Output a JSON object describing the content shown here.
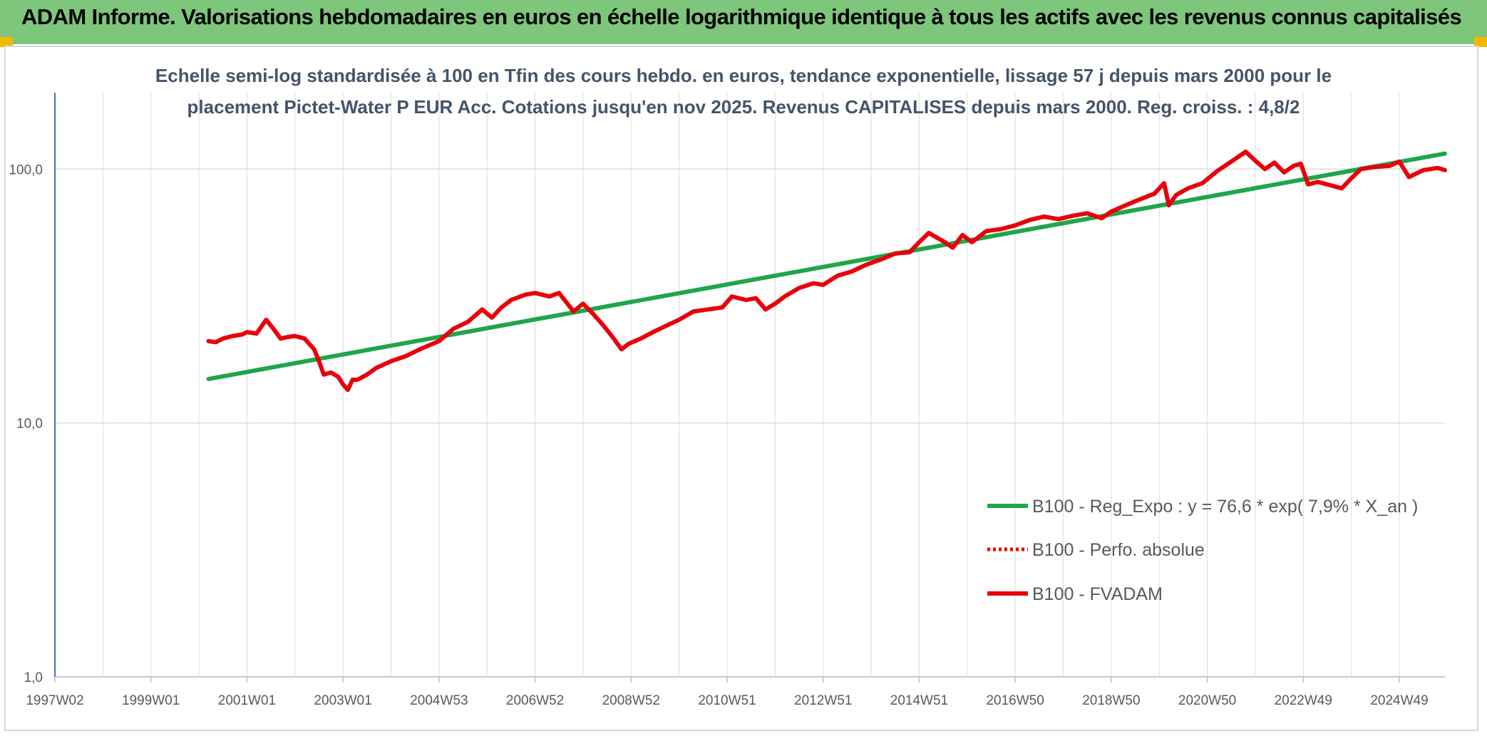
{
  "header": {
    "title": "ADAM Informe. Valorisations hebdomadaires en euros en échelle logarithmique identique à tous les actifs avec les revenus connus capitalisés"
  },
  "colors": {
    "banner": "#7dc67b",
    "regression": "#1fa64a",
    "fvadam": "#e8000b",
    "perfo": "#e8000b",
    "grid": "#dcdcdc",
    "axis": "#4472c4"
  },
  "chart_data": {
    "type": "line",
    "subtitle_lines": [
      "Echelle semi-log standardisée à 100 en Tfin des cours hebdo. en euros, tendance exponentielle, lissage 57 j depuis mars 2000 pour le",
      "placement Pictet-Water P EUR Acc. Cotations jusqu'en nov 2025. Revenus CAPITALISES depuis mars 2000. Reg. croiss. : 4,8/2"
    ],
    "y_scale": "log",
    "ylim": [
      1,
      200
    ],
    "y_ticks": [
      {
        "value": 1,
        "label": "1,0"
      },
      {
        "value": 10,
        "label": "10,0"
      },
      {
        "value": 100,
        "label": "100,0"
      }
    ],
    "xlim": [
      1997.0,
      2025.95
    ],
    "x_ticks": [
      {
        "value": 1997.0,
        "label": "1997W02"
      },
      {
        "value": 1999.0,
        "label": "1999W01"
      },
      {
        "value": 2001.0,
        "label": "2001W01"
      },
      {
        "value": 2003.0,
        "label": "2003W01"
      },
      {
        "value": 2005.0,
        "label": "2004W53"
      },
      {
        "value": 2007.0,
        "label": "2006W52"
      },
      {
        "value": 2009.0,
        "label": "2008W52"
      },
      {
        "value": 2011.0,
        "label": "2010W51"
      },
      {
        "value": 2013.0,
        "label": "2012W51"
      },
      {
        "value": 2015.0,
        "label": "2014W51"
      },
      {
        "value": 2017.0,
        "label": "2016W50"
      },
      {
        "value": 2019.0,
        "label": "2018W50"
      },
      {
        "value": 2021.0,
        "label": "2020W50"
      },
      {
        "value": 2023.0,
        "label": "2022W49"
      },
      {
        "value": 2025.0,
        "label": "2024W49"
      }
    ],
    "grid": true,
    "legend_position": "bottom-right",
    "series": [
      {
        "name": "B100 - Reg_Expo : y = 76,6 * exp( 7,9% *  X_an )",
        "style": "solid",
        "x": [
          2000.2,
          2025.95
        ],
        "y": [
          14.9,
          115
        ]
      },
      {
        "name": "B100 - Perfo. absolue",
        "style": "dotted",
        "x": [],
        "y": []
      },
      {
        "name": "B100 - FVADAM",
        "style": "solid",
        "x": [
          2000.2,
          2000.35,
          2000.5,
          2000.7,
          2000.9,
          2001.0,
          2001.2,
          2001.4,
          2001.55,
          2001.7,
          2001.85,
          2002.0,
          2002.2,
          2002.4,
          2002.5,
          2002.6,
          2002.75,
          2002.9,
          2003.0,
          2003.1,
          2003.2,
          2003.3,
          2003.5,
          2003.7,
          2004.0,
          2004.3,
          2004.6,
          2005.0,
          2005.3,
          2005.6,
          2005.9,
          2006.1,
          2006.3,
          2006.5,
          2006.8,
          2007.0,
          2007.3,
          2007.5,
          2007.8,
          2008.0,
          2008.2,
          2008.4,
          2008.6,
          2008.8,
          2008.95,
          2009.2,
          2009.5,
          2009.8,
          2010.0,
          2010.3,
          2010.6,
          2010.9,
          2011.1,
          2011.4,
          2011.6,
          2011.8,
          2012.0,
          2012.2,
          2012.5,
          2012.8,
          2013.0,
          2013.3,
          2013.6,
          2013.9,
          2014.2,
          2014.5,
          2014.8,
          2015.0,
          2015.2,
          2015.5,
          2015.7,
          2015.9,
          2016.1,
          2016.4,
          2016.7,
          2017.0,
          2017.3,
          2017.6,
          2017.9,
          2018.2,
          2018.5,
          2018.8,
          2019.0,
          2019.3,
          2019.6,
          2019.9,
          2020.1,
          2020.2,
          2020.35,
          2020.6,
          2020.9,
          2021.2,
          2021.5,
          2021.8,
          2022.0,
          2022.2,
          2022.4,
          2022.6,
          2022.8,
          2022.95,
          2023.1,
          2023.3,
          2023.5,
          2023.8,
          2024.0,
          2024.2,
          2024.5,
          2024.8,
          2025.0,
          2025.2,
          2025.5,
          2025.8,
          2025.95
        ],
        "y": [
          21.0,
          20.8,
          21.5,
          22.0,
          22.3,
          22.8,
          22.5,
          25.5,
          23.5,
          21.5,
          21.8,
          22.0,
          21.5,
          19.5,
          17.5,
          15.5,
          15.8,
          15.2,
          14.2,
          13.5,
          14.8,
          14.8,
          15.5,
          16.5,
          17.5,
          18.3,
          19.5,
          21.0,
          23.5,
          25.0,
          28.0,
          26.0,
          28.5,
          30.5,
          32.0,
          32.5,
          31.5,
          32.5,
          27.5,
          29.5,
          27.0,
          24.5,
          22.0,
          19.5,
          20.5,
          21.5,
          23.0,
          24.5,
          25.5,
          27.5,
          28.0,
          28.5,
          31.5,
          30.5,
          31.0,
          28.0,
          29.5,
          31.5,
          34.0,
          35.5,
          35.0,
          38.0,
          39.5,
          42.0,
          44.0,
          46.5,
          47.0,
          51.5,
          56.0,
          52.0,
          49.0,
          55.0,
          51.5,
          57.0,
          58.0,
          60.0,
          63.0,
          65.0,
          63.5,
          65.5,
          67.0,
          64.0,
          68.0,
          72.0,
          76.0,
          80.0,
          88.0,
          72.0,
          79.0,
          84.0,
          88.0,
          98.0,
          107.0,
          117.0,
          108.0,
          100.0,
          106.0,
          97.0,
          103.0,
          105.0,
          87.0,
          89.0,
          87.0,
          84.0,
          92.0,
          100.0,
          102.0,
          103.0,
          107.0,
          93.0,
          99.0,
          101.0,
          99.0
        ]
      }
    ]
  }
}
